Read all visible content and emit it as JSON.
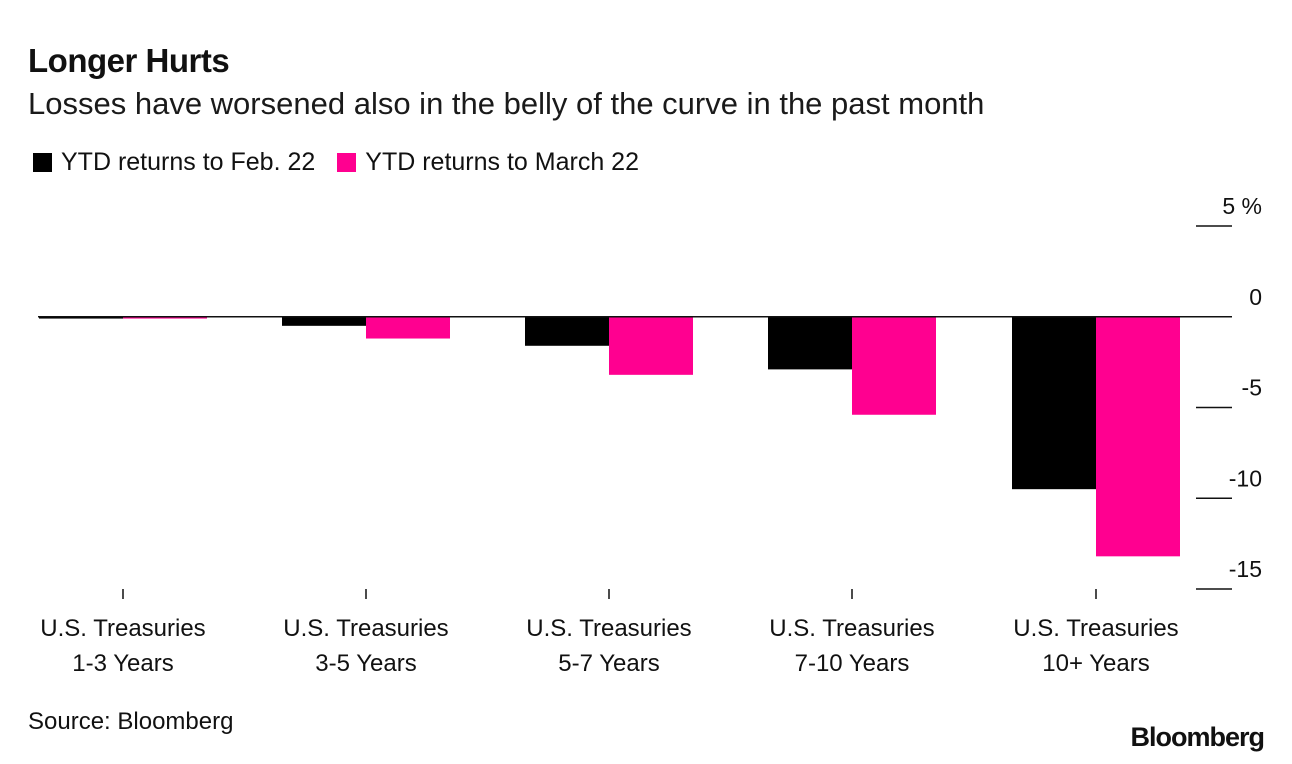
{
  "chart_data": {
    "type": "bar",
    "title": "Longer Hurts",
    "subtitle": "Losses have worsened also in the belly of the curve in the past month",
    "categories": [
      [
        "U.S. Treasuries",
        "1-3 Years"
      ],
      [
        "U.S. Treasuries",
        "3-5 Years"
      ],
      [
        "U.S. Treasuries",
        "5-7 Years"
      ],
      [
        "U.S. Treasuries",
        "7-10 Years"
      ],
      [
        "U.S. Treasuries",
        "10+ Years"
      ]
    ],
    "series": [
      {
        "name": "YTD returns to Feb. 22",
        "color": "#000000",
        "values": [
          -0.1,
          -0.5,
          -1.6,
          -2.9,
          -9.5
        ]
      },
      {
        "name": "YTD returns to March 22",
        "color": "#ff0090",
        "values": [
          -0.1,
          -1.2,
          -3.2,
          -5.4,
          -13.2
        ]
      }
    ],
    "ylim": [
      -15,
      5
    ],
    "yticks": [
      5,
      0,
      -5,
      -10,
      -15
    ],
    "ytick_labels": [
      "5 %",
      "0",
      "-5",
      "-10",
      "-15"
    ],
    "source": "Source: Bloomberg",
    "brand": "Bloomberg"
  }
}
